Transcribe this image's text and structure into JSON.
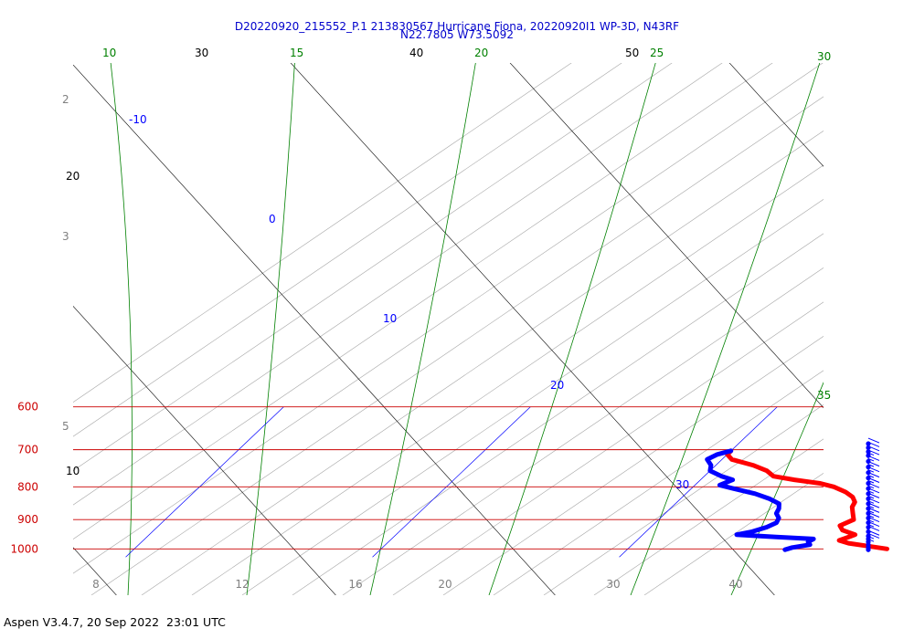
{
  "title_line1": "D20220920_215552_P.1 213830567 Hurricane Fiona, 20220920I1 WP-3D, N43RF",
  "title_line2": "N22.7805 W73.5092",
  "footer": "Aspen V3.4.7, 20 Sep 2022  23:01 UTC",
  "colors": {
    "title": "#0000cc",
    "pressure": "#cc0000",
    "isotherm": "#0000ff",
    "mixing_ratio": "#008000",
    "dry_adiabat": "#000000",
    "moist_adiabat": "#808080",
    "temperature": "#ff0000",
    "dewpoint": "#0000ff",
    "wind": "#0000ff"
  },
  "chart_data": {
    "type": "skew-t",
    "title": "D20220920_215552_P.1 213830567 Hurricane Fiona, 20220920I1 WP-3D, N43RF",
    "subtitle": "N22.7805 W73.5092",
    "ylim_hPa": [
      1030,
      600
    ],
    "log_pressure": true,
    "pressure_levels": [
      {
        "value": 600,
        "label": "600"
      },
      {
        "value": 700,
        "label": "700"
      },
      {
        "value": 800,
        "label": "800"
      },
      {
        "value": 900,
        "label": "900"
      },
      {
        "value": 1000,
        "label": "1000"
      }
    ],
    "isotherms_C": [
      {
        "value": -10,
        "label": "-10"
      },
      {
        "value": 0,
        "label": "0"
      },
      {
        "value": 10,
        "label": "10"
      },
      {
        "value": 20,
        "label": "20"
      },
      {
        "value": 30,
        "label": "30"
      }
    ],
    "dry_adiabats_C": [
      {
        "value": 10,
        "label": "10"
      },
      {
        "value": 20,
        "label": "20"
      },
      {
        "value": 30,
        "label": "30"
      },
      {
        "value": 40,
        "label": "40"
      },
      {
        "value": 50,
        "label": "50"
      }
    ],
    "moist_adiabats": [
      {
        "value": 2,
        "label": "2"
      },
      {
        "value": 3,
        "label": "3"
      },
      {
        "value": 5,
        "label": "5"
      }
    ],
    "mixing_ratio_lines": [
      {
        "value": 10,
        "label": "10"
      },
      {
        "value": 15,
        "label": "15"
      },
      {
        "value": 20,
        "label": "20"
      },
      {
        "value": 25,
        "label": "25"
      },
      {
        "value": 30,
        "label": "30"
      },
      {
        "value": 35,
        "label": "35"
      }
    ],
    "bottom_axis_labels": [
      "8",
      "12",
      "16",
      "20",
      "30",
      "40"
    ],
    "temperature_profile": {
      "name": "",
      "points": [
        {
          "p": 1000,
          "t": 20.5
        },
        {
          "p": 990,
          "t": 19.6
        },
        {
          "p": 980,
          "t": 18.7
        },
        {
          "p": 970,
          "t": 18.2
        },
        {
          "p": 960,
          "t": 18.4
        },
        {
          "p": 950,
          "t": 18.6
        },
        {
          "p": 935,
          "t": 17.9
        },
        {
          "p": 920,
          "t": 17.6
        },
        {
          "p": 900,
          "t": 17.9
        },
        {
          "p": 880,
          "t": 17.6
        },
        {
          "p": 860,
          "t": 17.3
        },
        {
          "p": 845,
          "t": 17.2
        },
        {
          "p": 830,
          "t": 16.9
        },
        {
          "p": 815,
          "t": 16.4
        },
        {
          "p": 800,
          "t": 15.7
        },
        {
          "p": 790,
          "t": 15.0
        },
        {
          "p": 780,
          "t": 13.8
        },
        {
          "p": 770,
          "t": 12.8
        },
        {
          "p": 755,
          "t": 12.3
        },
        {
          "p": 740,
          "t": 11.5
        },
        {
          "p": 725,
          "t": 10.4
        },
        {
          "p": 712,
          "t": 10.0
        },
        {
          "p": 703,
          "t": 10.0
        }
      ]
    },
    "dewpoint_profile": {
      "name": "",
      "points": [
        {
          "p": 1003,
          "t": 16.4
        },
        {
          "p": 995,
          "t": 16.6
        },
        {
          "p": 985,
          "t": 17.2
        },
        {
          "p": 975,
          "t": 17.0
        },
        {
          "p": 965,
          "t": 17.1
        },
        {
          "p": 958,
          "t": 15.5
        },
        {
          "p": 950,
          "t": 13.8
        },
        {
          "p": 940,
          "t": 14.3
        },
        {
          "p": 925,
          "t": 14.7
        },
        {
          "p": 910,
          "t": 14.9
        },
        {
          "p": 895,
          "t": 14.8
        },
        {
          "p": 880,
          "t": 14.5
        },
        {
          "p": 865,
          "t": 14.4
        },
        {
          "p": 850,
          "t": 14.2
        },
        {
          "p": 835,
          "t": 13.6
        },
        {
          "p": 820,
          "t": 12.8
        },
        {
          "p": 805,
          "t": 11.7
        },
        {
          "p": 795,
          "t": 11.0
        },
        {
          "p": 780,
          "t": 11.3
        },
        {
          "p": 770,
          "t": 10.7
        },
        {
          "p": 755,
          "t": 10.0
        },
        {
          "p": 740,
          "t": 9.8
        },
        {
          "p": 725,
          "t": 9.4
        },
        {
          "p": 712,
          "t": 9.6
        },
        {
          "p": 705,
          "t": 9.9
        },
        {
          "p": 703,
          "t": 10.0
        }
      ]
    },
    "wind_barbs": [
      {
        "p": 1003,
        "speed_kt": 0
      },
      {
        "p": 995,
        "speed_kt": 0
      },
      {
        "p": 985,
        "speed_kt": 5
      },
      {
        "p": 975,
        "speed_kt": 5
      },
      {
        "p": 965,
        "speed_kt": 10
      },
      {
        "p": 955,
        "speed_kt": 10
      },
      {
        "p": 940,
        "speed_kt": 10
      },
      {
        "p": 925,
        "speed_kt": 15
      },
      {
        "p": 910,
        "speed_kt": 15
      },
      {
        "p": 895,
        "speed_kt": 15
      },
      {
        "p": 880,
        "speed_kt": 15
      },
      {
        "p": 865,
        "speed_kt": 15
      },
      {
        "p": 850,
        "speed_kt": 15
      },
      {
        "p": 835,
        "speed_kt": 15
      },
      {
        "p": 820,
        "speed_kt": 15
      },
      {
        "p": 805,
        "speed_kt": 15
      },
      {
        "p": 790,
        "speed_kt": 15
      },
      {
        "p": 775,
        "speed_kt": 15
      },
      {
        "p": 760,
        "speed_kt": 15
      },
      {
        "p": 745,
        "speed_kt": 15
      },
      {
        "p": 730,
        "speed_kt": 15
      },
      {
        "p": 715,
        "speed_kt": 15
      },
      {
        "p": 705,
        "speed_kt": 10
      },
      {
        "p": 695,
        "speed_kt": 10
      },
      {
        "p": 685,
        "speed_kt": 10
      }
    ],
    "grid": true
  }
}
